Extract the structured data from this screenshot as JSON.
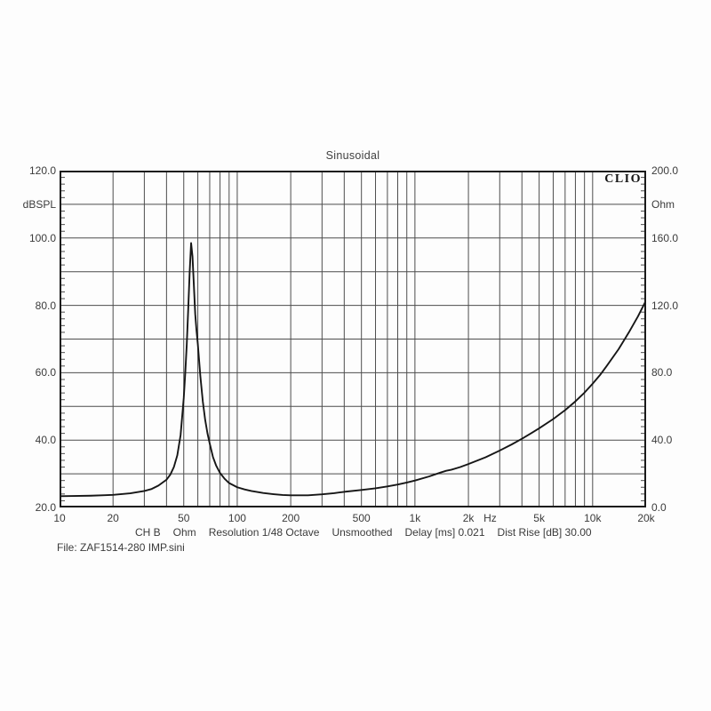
{
  "title": "Sinusoidal",
  "brand": "CLIO",
  "file_line": "File: ZAF1514-280 IMP.sini",
  "status_line": {
    "channel": "CH B",
    "unit": "Ohm",
    "resolution": "Resolution 1/48 Octave",
    "smoothing": "Unsmoothed",
    "delay": "Delay [ms] 0.021",
    "dist_rise": "Dist Rise [dB] 30.00"
  },
  "left_axis": {
    "label": "dBSPL",
    "min": 20,
    "max": 120,
    "ticks": [
      {
        "value": 120,
        "label": "120.0"
      },
      {
        "value": 100,
        "label": "100.0"
      },
      {
        "value": 80,
        "label": "80.0"
      },
      {
        "value": 60,
        "label": "60.0"
      },
      {
        "value": 40,
        "label": "40.0"
      },
      {
        "value": 20,
        "label": "20.0"
      }
    ]
  },
  "right_axis": {
    "label": "Ohm",
    "min": 0,
    "max": 200,
    "ticks": [
      {
        "value": 200,
        "label": "200.0"
      },
      {
        "value": 160,
        "label": "160.0"
      },
      {
        "value": 120,
        "label": "120.0"
      },
      {
        "value": 80,
        "label": "80.0"
      },
      {
        "value": 40,
        "label": "40.0"
      },
      {
        "value": 0,
        "label": "0.0"
      }
    ]
  },
  "x_axis": {
    "unit": "Hz",
    "unit_position_hz": 2650,
    "min": 10,
    "max": 20000,
    "ticks": [
      {
        "value": 10,
        "label": "10"
      },
      {
        "value": 20,
        "label": "20"
      },
      {
        "value": 50,
        "label": "50"
      },
      {
        "value": 100,
        "label": "100"
      },
      {
        "value": 200,
        "label": "200"
      },
      {
        "value": 500,
        "label": "500"
      },
      {
        "value": 1000,
        "label": "1k"
      },
      {
        "value": 2000,
        "label": "2k"
      },
      {
        "value": 5000,
        "label": "5k"
      },
      {
        "value": 10000,
        "label": "10k"
      },
      {
        "value": 20000,
        "label": "20k"
      }
    ]
  },
  "colors": {
    "grid": "#4d4d4d",
    "border": "#1a1a1a",
    "curve": "#161616",
    "text": "#3b3b3b",
    "background": "#fdfdfd"
  },
  "chart_data": {
    "type": "line",
    "title": "Sinusoidal",
    "xlabel": "Hz",
    "ylabel_left": "dBSPL",
    "ylabel_right": "Ohm",
    "x_scale": "log",
    "xlim": [
      10,
      20000
    ],
    "ylim_left": [
      20,
      120
    ],
    "ylim_right": [
      0,
      200
    ],
    "grid": true,
    "grid_step_right": 20,
    "minor_tick_step_right": 4,
    "legend_position": "none",
    "series": [
      {
        "name": "Impedance CH B",
        "unit": "Ohm",
        "axis": "right",
        "peak": {
          "frequency_hz": 55,
          "impedance_ohm": 157
        },
        "points": [
          [
            10,
            6.7
          ],
          [
            12,
            6.8
          ],
          [
            15,
            7.0
          ],
          [
            18,
            7.3
          ],
          [
            20,
            7.5
          ],
          [
            25,
            8.4
          ],
          [
            30,
            9.8
          ],
          [
            33,
            11
          ],
          [
            36,
            13
          ],
          [
            40,
            16.5
          ],
          [
            42,
            19.5
          ],
          [
            44,
            24
          ],
          [
            46,
            31
          ],
          [
            48,
            43
          ],
          [
            50,
            65
          ],
          [
            51,
            80
          ],
          [
            52,
            97
          ],
          [
            53,
            118
          ],
          [
            54,
            140
          ],
          [
            55,
            157
          ],
          [
            56,
            149
          ],
          [
            57,
            132
          ],
          [
            58,
            115
          ],
          [
            59,
            105
          ],
          [
            60,
            97
          ],
          [
            62,
            78
          ],
          [
            64,
            63
          ],
          [
            66,
            52
          ],
          [
            68,
            44
          ],
          [
            70,
            38
          ],
          [
            73,
            30
          ],
          [
            76,
            25
          ],
          [
            80,
            20.5
          ],
          [
            85,
            17
          ],
          [
            90,
            14.5
          ],
          [
            100,
            12
          ],
          [
            110,
            10.7
          ],
          [
            120,
            9.8
          ],
          [
            140,
            8.6
          ],
          [
            160,
            7.9
          ],
          [
            180,
            7.4
          ],
          [
            200,
            7.2
          ],
          [
            250,
            7.2
          ],
          [
            300,
            7.8
          ],
          [
            350,
            8.5
          ],
          [
            400,
            9.3
          ],
          [
            500,
            10.4
          ],
          [
            600,
            11.4
          ],
          [
            700,
            12.5
          ],
          [
            800,
            13.6
          ],
          [
            900,
            14.8
          ],
          [
            1000,
            16
          ],
          [
            1200,
            18.4
          ],
          [
            1400,
            20.8
          ],
          [
            1500,
            21.8
          ],
          [
            1600,
            22.4
          ],
          [
            1800,
            24
          ],
          [
            2000,
            25.8
          ],
          [
            2500,
            29.8
          ],
          [
            3000,
            33.8
          ],
          [
            3500,
            37.4
          ],
          [
            4000,
            40.8
          ],
          [
            4500,
            44
          ],
          [
            5000,
            47
          ],
          [
            6000,
            52.5
          ],
          [
            7000,
            57.8
          ],
          [
            8000,
            63
          ],
          [
            9000,
            68.2
          ],
          [
            10000,
            73.5
          ],
          [
            11000,
            78.6
          ],
          [
            12000,
            84
          ],
          [
            14000,
            94
          ],
          [
            16000,
            104
          ],
          [
            18000,
            113.5
          ],
          [
            20000,
            123
          ]
        ]
      }
    ]
  }
}
